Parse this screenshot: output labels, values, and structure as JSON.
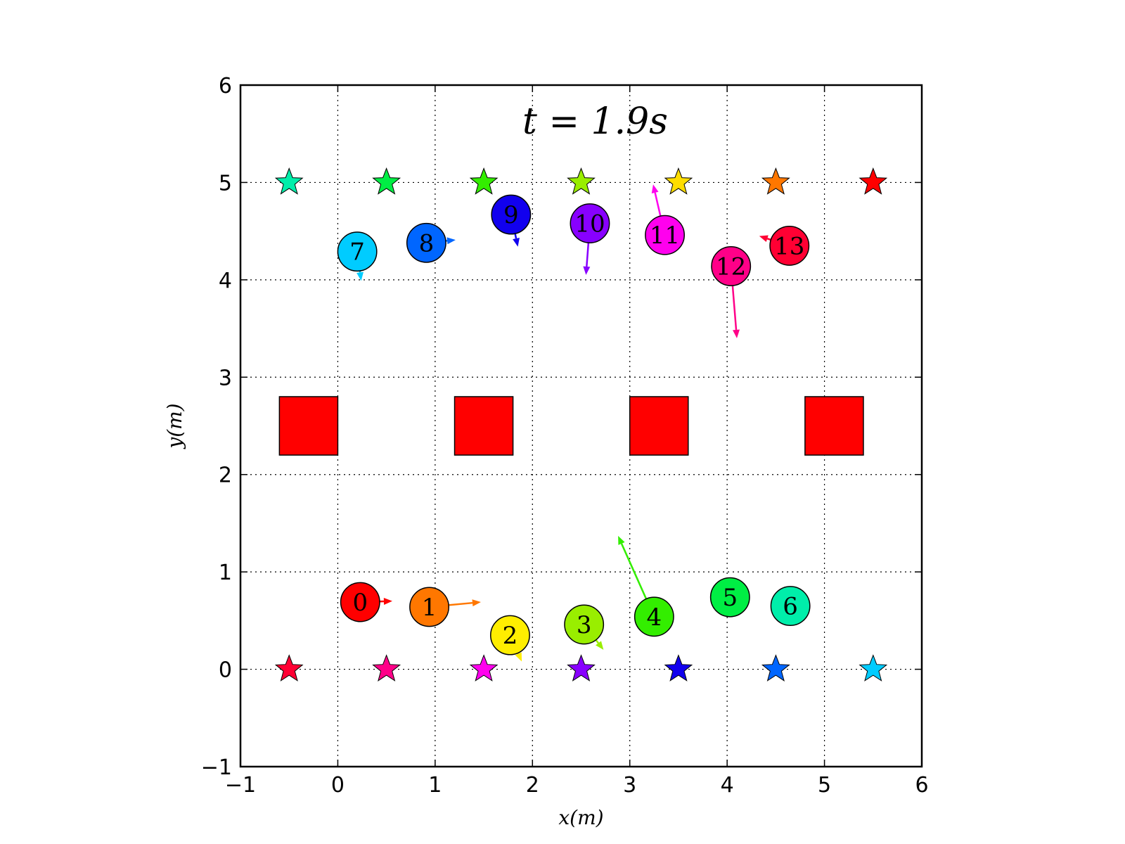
{
  "chart_data": {
    "type": "scatter",
    "title": "t = 1.9s",
    "xlabel": "x(m)",
    "ylabel": "y(m)",
    "xlim": [
      -1,
      6
    ],
    "ylim": [
      -1,
      6
    ],
    "xticks": [
      -1,
      0,
      1,
      2,
      3,
      4,
      5,
      6
    ],
    "yticks": [
      -1,
      0,
      1,
      2,
      3,
      4,
      5,
      6
    ],
    "xtick_labels": [
      "−1",
      "0",
      "1",
      "2",
      "3",
      "4",
      "5",
      "6"
    ],
    "ytick_labels": [
      "−1",
      "0",
      "1",
      "2",
      "3",
      "4",
      "5",
      "6"
    ],
    "grid": true,
    "agent_radius": 0.2,
    "agents": [
      {
        "label": "0",
        "x": 0.23,
        "y": 0.69,
        "vx": 0.33,
        "vy": 0.01,
        "color": "#ff0000"
      },
      {
        "label": "1",
        "x": 0.94,
        "y": 0.64,
        "vx": 0.53,
        "vy": 0.05,
        "color": "#ff7700"
      },
      {
        "label": "2",
        "x": 1.77,
        "y": 0.35,
        "vx": 0.12,
        "vy": -0.27,
        "color": "#ffee00"
      },
      {
        "label": "3",
        "x": 2.53,
        "y": 0.46,
        "vx": 0.2,
        "vy": -0.26,
        "color": "#99ee00"
      },
      {
        "label": "4",
        "x": 3.25,
        "y": 0.54,
        "vx": -0.37,
        "vy": 0.83,
        "color": "#33ee00"
      },
      {
        "label": "5",
        "x": 4.03,
        "y": 0.74,
        "vx": 0.0,
        "vy": 0.0,
        "color": "#00ee44"
      },
      {
        "label": "6",
        "x": 4.65,
        "y": 0.65,
        "vx": 0.0,
        "vy": 0.0,
        "color": "#00eeaa"
      },
      {
        "label": "7",
        "x": 0.2,
        "y": 4.29,
        "vx": 0.04,
        "vy": -0.3,
        "color": "#00ccff"
      },
      {
        "label": "8",
        "x": 0.91,
        "y": 4.38,
        "vx": 0.3,
        "vy": 0.03,
        "color": "#0066ff"
      },
      {
        "label": "9",
        "x": 1.78,
        "y": 4.67,
        "vx": 0.07,
        "vy": -0.33,
        "color": "#1100ee"
      },
      {
        "label": "10",
        "x": 2.59,
        "y": 4.58,
        "vx": -0.04,
        "vy": -0.53,
        "color": "#8800ff"
      },
      {
        "label": "11",
        "x": 3.36,
        "y": 4.46,
        "vx": -0.12,
        "vy": 0.52,
        "color": "#ff00ee"
      },
      {
        "label": "12",
        "x": 4.04,
        "y": 4.14,
        "vx": 0.06,
        "vy": -0.74,
        "color": "#ff0088"
      },
      {
        "label": "13",
        "x": 4.64,
        "y": 4.35,
        "vx": -0.31,
        "vy": 0.1,
        "color": "#ff0033"
      }
    ],
    "goals": [
      {
        "x": -0.5,
        "y": 5.0,
        "color": "#00eeaa"
      },
      {
        "x": 0.5,
        "y": 5.0,
        "color": "#00ee44"
      },
      {
        "x": 1.5,
        "y": 5.0,
        "color": "#33ee00"
      },
      {
        "x": 2.5,
        "y": 5.0,
        "color": "#99ee00"
      },
      {
        "x": 3.5,
        "y": 5.0,
        "color": "#ffdd00"
      },
      {
        "x": 4.5,
        "y": 5.0,
        "color": "#ff7700"
      },
      {
        "x": 5.5,
        "y": 5.0,
        "color": "#ff0000"
      },
      {
        "x": -0.5,
        "y": 0.0,
        "color": "#ff0033"
      },
      {
        "x": 0.5,
        "y": 0.0,
        "color": "#ff0088"
      },
      {
        "x": 1.5,
        "y": 0.0,
        "color": "#ff00ee"
      },
      {
        "x": 2.5,
        "y": 0.0,
        "color": "#8800ff"
      },
      {
        "x": 3.5,
        "y": 0.0,
        "color": "#1100ee"
      },
      {
        "x": 4.5,
        "y": 0.0,
        "color": "#0066ff"
      },
      {
        "x": 5.5,
        "y": 0.0,
        "color": "#00ccff"
      }
    ],
    "obstacles": [
      {
        "x0": -0.6,
        "y0": 2.2,
        "x1": 0.0,
        "y1": 2.8,
        "color": "#ff0000"
      },
      {
        "x0": 1.2,
        "y0": 2.2,
        "x1": 1.8,
        "y1": 2.8,
        "color": "#ff0000"
      },
      {
        "x0": 3.0,
        "y0": 2.2,
        "x1": 3.6,
        "y1": 2.8,
        "color": "#ff0000"
      },
      {
        "x0": 4.8,
        "y0": 2.2,
        "x1": 5.4,
        "y1": 2.8,
        "color": "#ff0000"
      }
    ]
  }
}
